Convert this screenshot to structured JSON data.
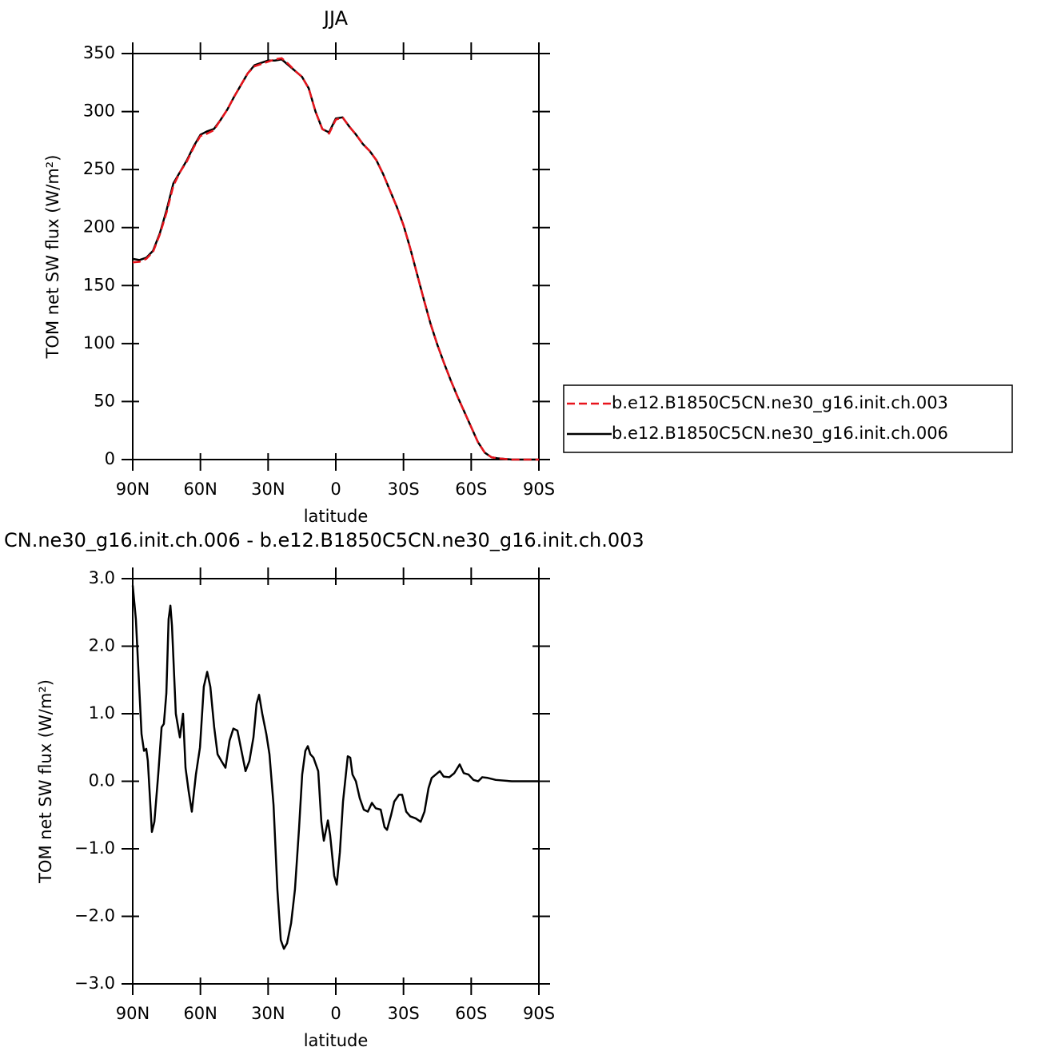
{
  "chart_data": [
    {
      "type": "line",
      "title": "JJA",
      "xlabel": "latitude",
      "ylabel": "TOM net SW flux (W/m²)",
      "x": [
        90,
        87,
        84,
        81,
        78,
        75,
        72,
        69,
        66,
        63,
        60,
        57,
        54,
        51,
        48,
        45,
        42,
        39,
        36,
        33,
        30,
        27,
        24,
        21,
        18,
        15,
        12,
        9,
        6,
        3,
        0,
        -3,
        -6,
        -9,
        -12,
        -15,
        -18,
        -21,
        -24,
        -27,
        -30,
        -33,
        -36,
        -39,
        -42,
        -45,
        -48,
        -51,
        -54,
        -57,
        -60,
        -63,
        -66,
        -69,
        -72,
        -75,
        -78,
        -81,
        -84,
        -87,
        -90
      ],
      "series": [
        {
          "name": "b.e12.B1850C5CN.ne30_g16.init.ch.003",
          "color": "#e8141c",
          "line_style": "dashed",
          "values": [
            170,
            170.5,
            173,
            179,
            194,
            213,
            236,
            248,
            257,
            269,
            279,
            281,
            284,
            293,
            302,
            313,
            323,
            333,
            339,
            341,
            343,
            345,
            346,
            341,
            335,
            330,
            320,
            300,
            285,
            281,
            293,
            295,
            287,
            280,
            272,
            266,
            258,
            246,
            232,
            218,
            202,
            182,
            160,
            138,
            117,
            99,
            83,
            68,
            54,
            41,
            28,
            15,
            6,
            2,
            1,
            0.5,
            0,
            0,
            0,
            0,
            0
          ]
        },
        {
          "name": "b.e12.B1850C5CN.ne30_g16.init.ch.006",
          "color": "#000000",
          "line_style": "solid",
          "values": [
            173,
            172,
            174,
            180,
            195,
            215,
            238,
            248,
            258,
            270,
            280,
            283,
            285,
            293,
            302,
            313,
            323,
            333,
            340,
            342,
            344,
            344,
            345,
            340,
            335,
            330,
            320,
            300,
            285,
            282,
            294,
            295,
            287,
            280,
            272,
            266,
            258,
            246,
            232,
            218,
            202,
            182,
            160,
            138,
            117,
            99,
            83,
            68,
            54,
            41,
            28,
            15,
            6,
            2,
            1,
            0.5,
            0,
            0,
            0,
            0,
            0
          ]
        }
      ],
      "xlim": [
        90,
        -90
      ],
      "xticks": [
        {
          "value": 90,
          "label": "90N"
        },
        {
          "value": 60,
          "label": "60N"
        },
        {
          "value": 30,
          "label": "30N"
        },
        0,
        {
          "value": -30,
          "label": "30S"
        },
        {
          "value": -60,
          "label": "60S"
        },
        {
          "value": -90,
          "label": "90S"
        }
      ],
      "ylim": [
        0,
        350
      ],
      "yticks": [
        0,
        50,
        100,
        150,
        200,
        250,
        300,
        350
      ],
      "legend": "right"
    },
    {
      "type": "line",
      "title": "CN.ne30_g16.init.ch.006 - b.e12.B1850C5CN.ne30_g16.init.ch.003",
      "xlabel": "latitude",
      "ylabel": "TOM net SW flux (W/m²)",
      "x": [
        90,
        88.6,
        86.1,
        85.0,
        84.0,
        83.3,
        81.5,
        80.4,
        78.7,
        77.2,
        76.2,
        75.1,
        74.1,
        73.3,
        72.6,
        70.9,
        69.1,
        67.7,
        66.6,
        65.2,
        63.8,
        62.0,
        60.2,
        58.5,
        57.0,
        55.6,
        53.9,
        52.4,
        50.7,
        48.9,
        47.1,
        45.4,
        43.6,
        41.8,
        40.0,
        38.3,
        36.5,
        35.1,
        34.0,
        32.6,
        30.8,
        29.4,
        27.6,
        25.9,
        24.4,
        23.0,
        21.6,
        19.8,
        18.1,
        16.3,
        14.9,
        13.5,
        12.4,
        11.3,
        9.9,
        7.8,
        6.4,
        5.3,
        3.5,
        2.5,
        0.7,
        -0.4,
        -1.8,
        -3.2,
        -5.3,
        -6.4,
        -7.4,
        -8.9,
        -10.6,
        -12.4,
        -14.2,
        -16.0,
        -17.7,
        -19.9,
        -21.6,
        -22.7,
        -24.5,
        -25.9,
        -28.0,
        -29.4,
        -31.2,
        -33.0,
        -35.4,
        -37.6,
        -39.3,
        -41.1,
        -42.5,
        -44.3,
        -46.1,
        -47.8,
        -50.3,
        -52.5,
        -54.9,
        -56.7,
        -58.8,
        -61.0,
        -63.1,
        -64.9,
        -67.3,
        -70.9,
        -78.0,
        -90
      ],
      "values": [
        2.9,
        2.4,
        0.7,
        0.45,
        0.48,
        0.3,
        -0.75,
        -0.6,
        0.1,
        0.8,
        0.85,
        1.3,
        2.4,
        2.6,
        2.3,
        1.0,
        0.65,
        1.0,
        0.2,
        -0.15,
        -0.45,
        0.1,
        0.5,
        1.4,
        1.62,
        1.4,
        0.8,
        0.4,
        0.3,
        0.2,
        0.6,
        0.78,
        0.75,
        0.45,
        0.15,
        0.3,
        0.65,
        1.15,
        1.28,
        1.0,
        0.7,
        0.4,
        -0.35,
        -1.6,
        -2.35,
        -2.48,
        -2.4,
        -2.1,
        -1.6,
        -0.7,
        0.1,
        0.45,
        0.52,
        0.4,
        0.35,
        0.15,
        -0.6,
        -0.88,
        -0.58,
        -0.8,
        -1.4,
        -1.53,
        -1.05,
        -0.3,
        0.37,
        0.35,
        0.1,
        0.0,
        -0.25,
        -0.42,
        -0.45,
        -0.32,
        -0.4,
        -0.42,
        -0.68,
        -0.72,
        -0.5,
        -0.3,
        -0.2,
        -0.2,
        -0.45,
        -0.52,
        -0.55,
        -0.6,
        -0.45,
        -0.1,
        0.05,
        0.1,
        0.15,
        0.07,
        0.06,
        0.12,
        0.25,
        0.12,
        0.1,
        0.02,
        0.0,
        0.06,
        0.05,
        0.02,
        0.0,
        0.0
      ],
      "color": "#000000",
      "xlim": [
        90,
        -90
      ],
      "xticks": [
        {
          "value": 90,
          "label": "90N"
        },
        {
          "value": 60,
          "label": "60N"
        },
        {
          "value": 30,
          "label": "30N"
        },
        0,
        {
          "value": -30,
          "label": "30S"
        },
        {
          "value": -60,
          "label": "60S"
        },
        {
          "value": -90,
          "label": "90S"
        }
      ],
      "ylim": [
        -3,
        3
      ],
      "yticks": [
        {
          "value": -3,
          "label": "−3.0"
        },
        {
          "value": -2,
          "label": "−2.0"
        },
        {
          "value": -1,
          "label": "−1.0"
        },
        {
          "value": 0,
          "label": "0.0"
        },
        {
          "value": 1,
          "label": "1.0"
        },
        {
          "value": 2,
          "label": "2.0"
        },
        {
          "value": 3,
          "label": "3.0"
        }
      ]
    }
  ]
}
